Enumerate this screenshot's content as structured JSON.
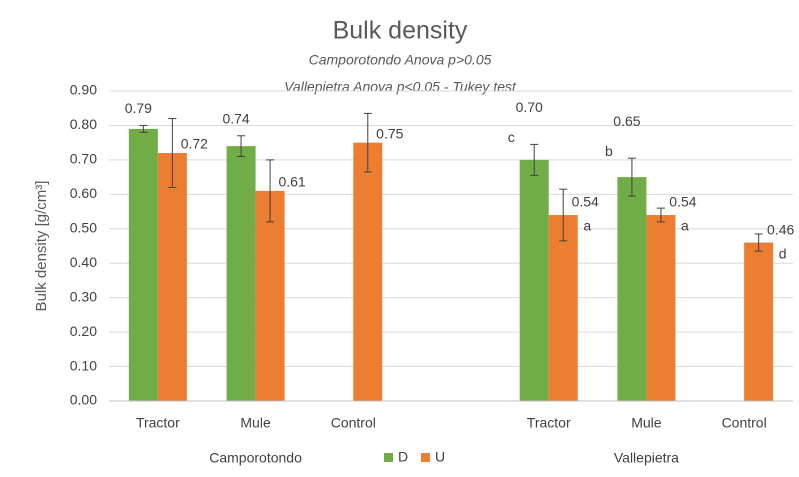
{
  "chart_data": {
    "type": "bar",
    "title": "Bulk density",
    "subtitles": [
      "Camporotondo Anova p>0.05",
      "Vallepietra Anova p<0.05 - Tukey test"
    ],
    "y_label": "Bulk density [g/cm³]",
    "categories": [
      "Tractor",
      "Mule",
      "Control",
      null,
      "Tractor",
      "Mule",
      "Control"
    ],
    "groups": [
      "Camporotondo",
      "Vallepietra"
    ],
    "series": [
      {
        "name": "D",
        "color": "#70ad47",
        "values": [
          0.79,
          0.74,
          null,
          null,
          0.7,
          0.65,
          null
        ],
        "value_labels": [
          "0.79",
          "0.74",
          null,
          null,
          "0.70",
          "0.65",
          null
        ],
        "errors": [
          0.01,
          0.03,
          null,
          null,
          0.045,
          0.055,
          null
        ],
        "letters": [
          null,
          null,
          null,
          null,
          "c",
          "b",
          null
        ]
      },
      {
        "name": "U",
        "color": "#ed7d31",
        "values": [
          0.72,
          0.61,
          0.75,
          null,
          0.54,
          0.54,
          0.46
        ],
        "value_labels": [
          "0.72",
          "0.61",
          "0.75",
          null,
          "0.54",
          "0.54",
          "0.46"
        ],
        "errors": [
          0.1,
          0.09,
          0.085,
          null,
          0.075,
          0.02,
          0.025
        ],
        "letters": [
          null,
          null,
          null,
          null,
          "a",
          "a",
          "d"
        ]
      }
    ],
    "ylim": [
      0,
      0.9
    ],
    "yticks": [
      {
        "value": 0,
        "label": "0.00"
      },
      {
        "value": 0.1,
        "label": "0.10"
      },
      {
        "value": 0.2,
        "label": "0.20"
      },
      {
        "value": 0.3,
        "label": "0.30"
      },
      {
        "value": 0.4,
        "label": "0.40"
      },
      {
        "value": 0.5,
        "label": "0.50"
      },
      {
        "value": 0.6,
        "label": "0.60"
      },
      {
        "value": 0.7,
        "label": "0.70"
      },
      {
        "value": 0.8,
        "label": "0.80"
      },
      {
        "value": 0.9,
        "label": "0.90"
      }
    ],
    "grid": true
  }
}
